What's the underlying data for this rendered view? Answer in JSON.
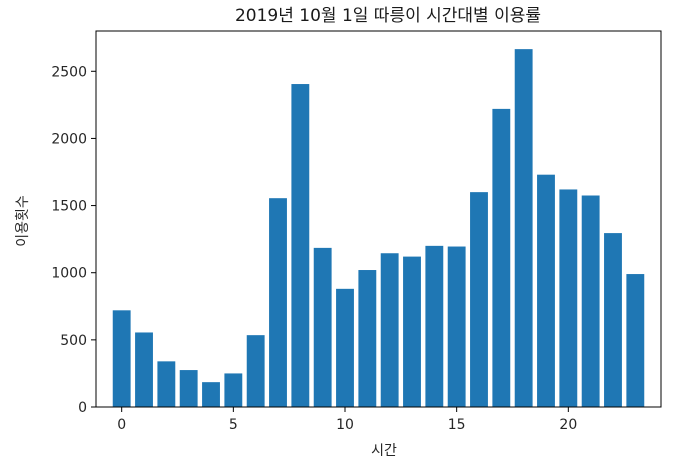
{
  "chart_data": {
    "type": "bar",
    "title": "2019년 10월 1일 따릉이 시간대별 이용률",
    "xlabel": "시간",
    "ylabel": "이용횟수",
    "x": [
      0,
      1,
      2,
      3,
      4,
      5,
      6,
      7,
      8,
      9,
      10,
      11,
      12,
      13,
      14,
      15,
      16,
      17,
      18,
      19,
      20,
      21,
      22,
      23
    ],
    "values": [
      720,
      555,
      340,
      275,
      185,
      250,
      535,
      1555,
      2405,
      1185,
      880,
      1020,
      1145,
      1120,
      1200,
      1195,
      1600,
      2220,
      2665,
      1730,
      1620,
      1575,
      1295,
      990
    ],
    "xlim": [
      -1.15,
      24.15
    ],
    "ylim": [
      0,
      2800
    ],
    "xticks": [
      0,
      5,
      10,
      15,
      20
    ],
    "yticks": [
      0,
      500,
      1000,
      1500,
      2000,
      2500
    ],
    "grid": false,
    "bar_color": "#1f77b4"
  }
}
